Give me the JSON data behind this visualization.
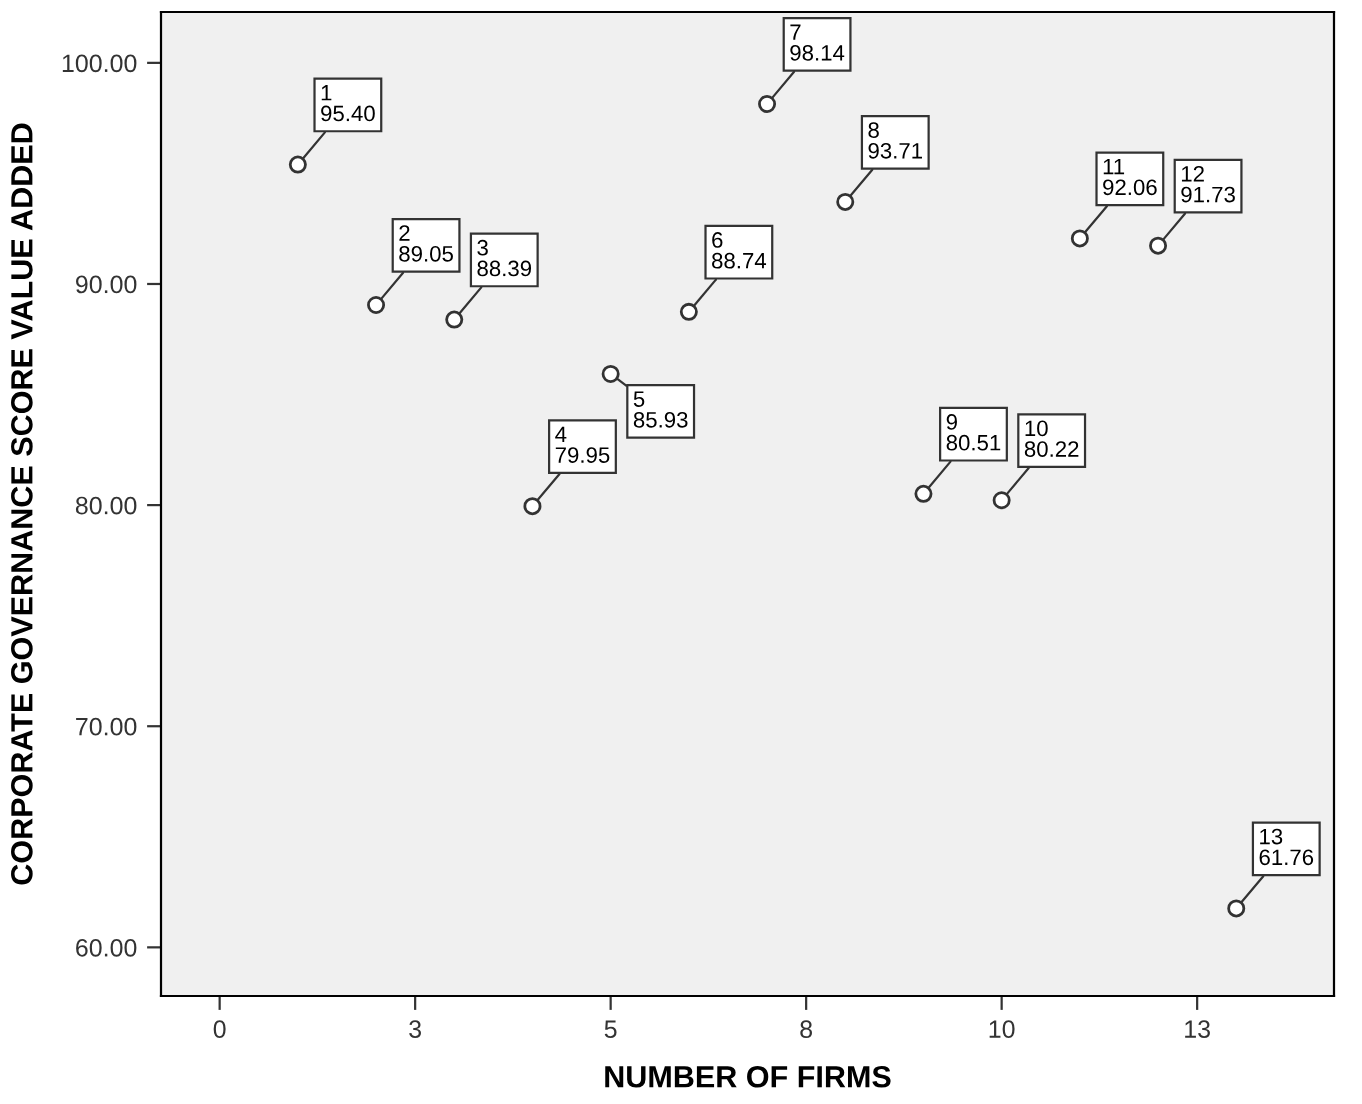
{
  "chart_data": {
    "type": "scatter",
    "xlabel": "NUMBER OF FIRMS",
    "ylabel": "CORPORATE GOVERNANCE SCORE VALUE ADDED",
    "x": [
      1,
      2,
      3,
      4,
      5,
      6,
      7,
      8,
      9,
      10,
      11,
      12,
      13
    ],
    "values": [
      95.4,
      89.05,
      88.39,
      79.95,
      85.93,
      88.74,
      98.14,
      93.71,
      80.51,
      80.22,
      92.06,
      91.73,
      61.76
    ],
    "value_labels": [
      "1\n95.40",
      "2\n89.05",
      "3\n88.39",
      "4\n79.95",
      "5\n85.93",
      "6\n88.74",
      "7\n98.14",
      "8\n93.71",
      "9\n80.51",
      "10\n80.22",
      "11\n92.06",
      "12\n91.73",
      "13\n61.76"
    ],
    "color": "#333333",
    "marker": "circle",
    "xlim": [
      -0.75,
      14.25
    ],
    "xticks": [
      0,
      {
        "value": 2.5,
        "label": "3"
      },
      5,
      {
        "value": 7.5,
        "label": "8"
      },
      10,
      {
        "value": 12.5,
        "label": "13"
      }
    ],
    "ylim": [
      57.8,
      102.3
    ],
    "yticks": [
      {
        "value": 60,
        "label": "60.00"
      },
      {
        "value": 70,
        "label": "70.00"
      },
      {
        "value": 80,
        "label": "80.00"
      },
      {
        "value": 90,
        "label": "90.00"
      },
      {
        "value": 100,
        "label": "100.00"
      }
    ],
    "grid": false,
    "legend": false
  }
}
